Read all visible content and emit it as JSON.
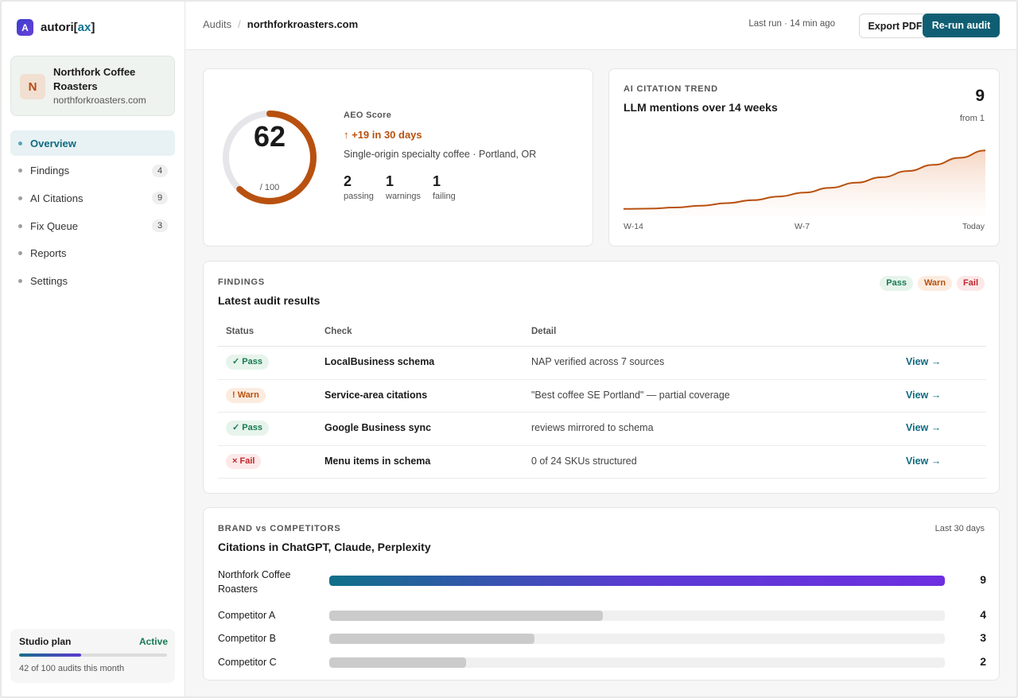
{
  "brand": {
    "mark": "A",
    "name_prefix": "autori[",
    "name_accent": "ax",
    "name_suffix": "]"
  },
  "client": {
    "avatar": "N",
    "name": "Northfork Coffee Roasters",
    "domain": "northforkroasters.com"
  },
  "nav": [
    {
      "label": "Overview",
      "count": null,
      "active": true
    },
    {
      "label": "Findings",
      "count": "4"
    },
    {
      "label": "AI Citations",
      "count": "9"
    },
    {
      "label": "Fix Queue",
      "count": "3"
    },
    {
      "label": "Reports",
      "count": null
    },
    {
      "label": "Settings",
      "count": null
    }
  ],
  "plan": {
    "title": "Studio plan",
    "status": "Active",
    "used": 42,
    "total": 100,
    "note": "42 of 100 audits this month"
  },
  "topbar": {
    "crumb_root": "Audits",
    "crumb_sep": "/",
    "crumb_current": "northforkroasters.com",
    "last_run": "Last run · 14 min ago",
    "export_label": "Export PDF",
    "rerun_label": "Re-run audit"
  },
  "score": {
    "value": "62",
    "of": "/ 100",
    "fraction": 0.62,
    "label": "AEO Score",
    "delta": "↑ +19 in 30 days",
    "description": "Single-origin specialty coffee · Portland, OR",
    "stats": [
      {
        "num": "2",
        "label": "passing"
      },
      {
        "num": "1",
        "label": "warnings"
      },
      {
        "num": "1",
        "label": "failing"
      }
    ],
    "accent": "#b8510f"
  },
  "trend": {
    "label": "AI CITATION TREND",
    "title": "LLM mentions over 14 weeks",
    "value": "9",
    "from": "from 1",
    "x_labels": [
      "W-14",
      "W-7",
      "Today"
    ]
  },
  "chart_data": {
    "type": "area",
    "x": [
      "W-14",
      "W-13",
      "W-12",
      "W-11",
      "W-10",
      "W-9",
      "W-8",
      "W-7",
      "W-6",
      "W-5",
      "W-4",
      "W-3",
      "W-2",
      "W-1",
      "Today"
    ],
    "values": [
      1,
      1.05,
      1.2,
      1.45,
      1.8,
      2.2,
      2.7,
      3.25,
      3.9,
      4.6,
      5.35,
      6.2,
      7.05,
      8,
      9
    ],
    "ylim": [
      0,
      9.8
    ]
  },
  "findings": {
    "label": "FINDINGS",
    "title": "Latest audit results",
    "legend": {
      "pass": "Pass",
      "warn": "Warn",
      "fail": "Fail"
    },
    "columns": {
      "status": "Status",
      "check": "Check",
      "detail": "Detail"
    },
    "rows": [
      {
        "status": "✓ Pass",
        "kind": "pass",
        "check": "LocalBusiness schema",
        "detail": "NAP verified across 7 sources",
        "action": "View →"
      },
      {
        "status": "! Warn",
        "kind": "warn",
        "check": "Service-area citations",
        "detail": "\"Best coffee SE Portland\" — partial coverage",
        "action": "View →"
      },
      {
        "status": "✓ Pass",
        "kind": "pass",
        "check": "Google Business sync",
        "detail": "reviews mirrored to schema",
        "action": "View →"
      },
      {
        "status": "× Fail",
        "kind": "fail",
        "check": "Menu items in schema",
        "detail": "0 of 24 SKUs structured",
        "action": "View →"
      }
    ]
  },
  "competitors": {
    "label": "BRAND vs COMPETITORS",
    "title": "Citations in ChatGPT, Claude, Perplexity",
    "range": "Last 30 days",
    "max": 9,
    "items": [
      {
        "name": "Northfork Coffee Roasters",
        "value": 9,
        "display": "9",
        "primary": true
      },
      {
        "name": "Competitor A",
        "value": 4,
        "display": "4"
      },
      {
        "name": "Competitor B",
        "value": 3,
        "display": "3"
      },
      {
        "name": "Competitor C",
        "value": 2,
        "display": "2"
      }
    ]
  }
}
